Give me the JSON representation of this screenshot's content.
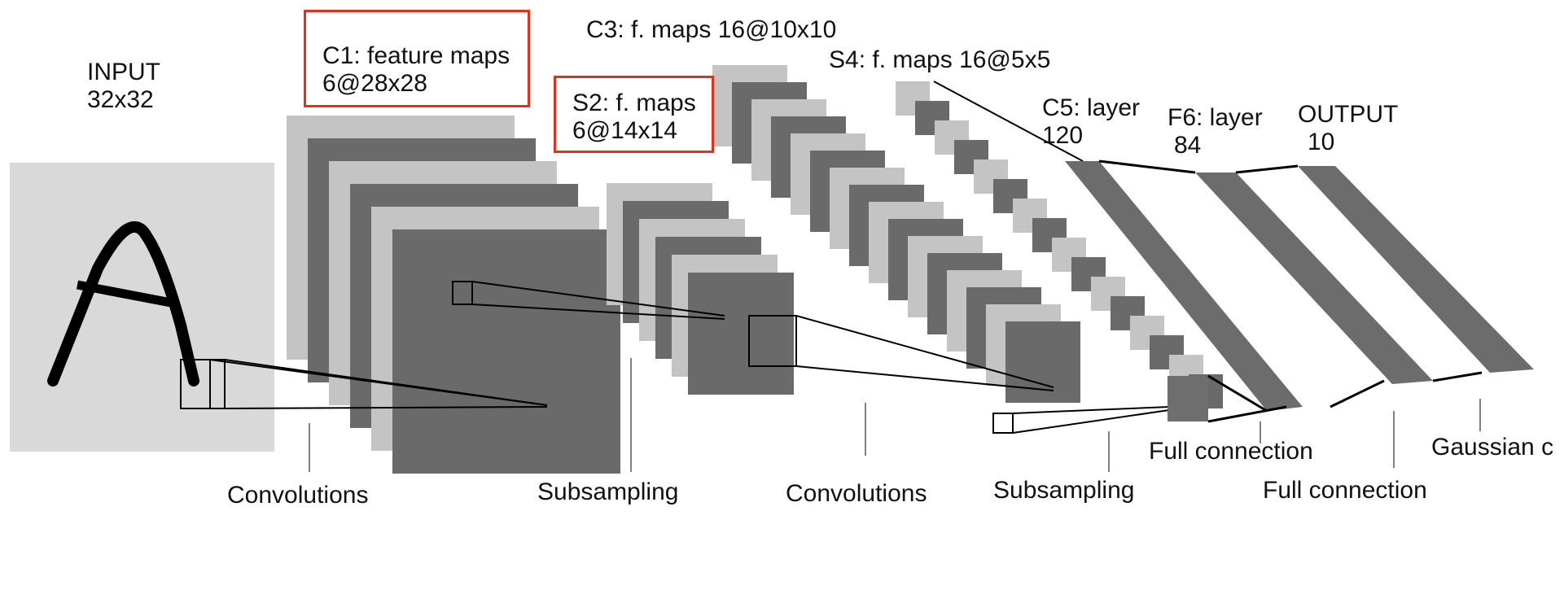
{
  "layers": {
    "input": {
      "name": "INPUT",
      "size": "32x32"
    },
    "c1": {
      "name": "C1: feature maps",
      "size": "6@28x28"
    },
    "s2": {
      "name": "S2: f. maps",
      "size": "6@14x14"
    },
    "c3": {
      "label": "C3: f. maps 16@10x10"
    },
    "s4": {
      "label": "S4: f. maps 16@5x5"
    },
    "c5": {
      "name": "C5: layer",
      "size": "120"
    },
    "f6": {
      "name": "F6: layer",
      "size": "84"
    },
    "output": {
      "name": "OUTPUT",
      "size": "10"
    }
  },
  "operations": {
    "conv1": "Convolutions",
    "sub1": "Subsampling",
    "conv2": "Convolutions",
    "sub2": "Subsampling",
    "full1": "Full connection",
    "full2": "Full connection",
    "gauss": "Gaussian c"
  },
  "colors": {
    "highlight": "#e0301e",
    "dark_map": "#6a6a6a",
    "light_map": "#c4c4c4",
    "input_bg": "#d8d8d8"
  }
}
